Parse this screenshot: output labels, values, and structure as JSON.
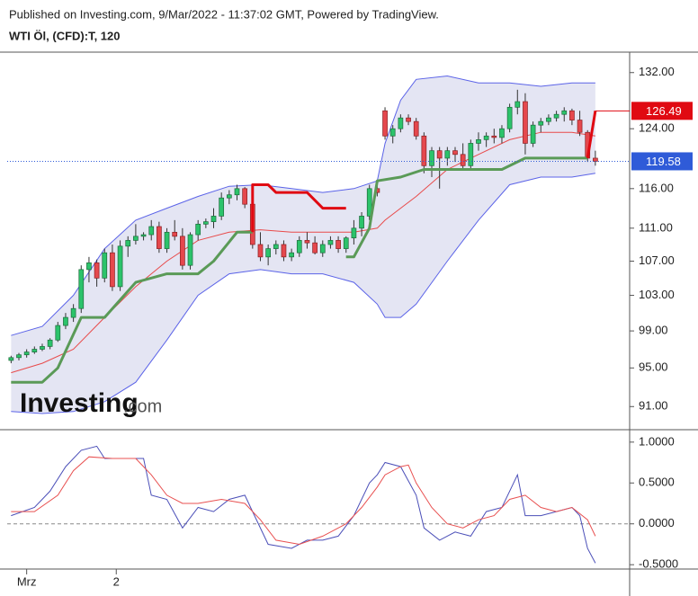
{
  "header": "Published on Investing.com, 9/Mar/2022 - 11:37:02 GMT, Powered by TradingView.",
  "logo": {
    "name": "Investing",
    "suffix": ".com"
  },
  "chart_data": [
    {
      "type": "candlestick",
      "title": "WTI Öl, (CFD):T, 120",
      "log_scale": true,
      "xlim": [
        -0.5,
        79.4
      ],
      "ylim": [
        89.4,
        134.5
      ],
      "yticks": [
        {
          "value": 91,
          "label": "91.00"
        },
        {
          "value": 95,
          "label": "95.00"
        },
        {
          "value": 99,
          "label": "99.00"
        },
        {
          "value": 103,
          "label": "103.00"
        },
        {
          "value": 107,
          "label": "107.00"
        },
        {
          "value": 111,
          "label": "111.00"
        },
        {
          "value": 116,
          "label": "116.00"
        },
        {
          "value": 124,
          "label": "124.00"
        },
        {
          "value": 132,
          "label": "132.00"
        }
      ],
      "up_color": "#2cc36b",
      "down_color": "#e5484d",
      "open": [
        95.8,
        96.1,
        96.4,
        96.7,
        97.0,
        97.3,
        98.0,
        99.6,
        100.5,
        101.5,
        106.0,
        106.8,
        105.0,
        108.0,
        104.0,
        108.8,
        109.5,
        110.0,
        110.2,
        111.2,
        108.5,
        110.5,
        110.0,
        106.5,
        110.2,
        111.5,
        111.8,
        112.5,
        114.8,
        115.2,
        116.0,
        114.0,
        109.0,
        107.5,
        108.5,
        109.0,
        107.5,
        108.0,
        109.5,
        109.2,
        108.0,
        109.0,
        109.5,
        108.5,
        109.8,
        111.0,
        112.5,
        116.0,
        126.5,
        123.0,
        124.0,
        125.5,
        125.0,
        123.0,
        119.0,
        121.0,
        120.0,
        121.0,
        120.5,
        119.0,
        122.0,
        122.5,
        123.0,
        122.8,
        124.0,
        127.0,
        127.8,
        122.0,
        124.5,
        125.0,
        125.5,
        126.0,
        126.5,
        125.2,
        123.5,
        120.0
      ],
      "high": [
        96.3,
        96.6,
        97.0,
        97.3,
        97.6,
        98.2,
        100.0,
        101.0,
        102.0,
        106.5,
        107.5,
        107.2,
        108.5,
        109.0,
        109.5,
        110.0,
        111.5,
        110.5,
        112.0,
        111.8,
        111.0,
        112.0,
        111.0,
        110.5,
        112.0,
        112.2,
        113.5,
        115.5,
        115.8,
        116.5,
        116.2,
        114.5,
        110.5,
        109.0,
        109.5,
        109.5,
        108.5,
        110.0,
        110.5,
        110.0,
        109.5,
        110.0,
        110.0,
        110.0,
        112.0,
        113.0,
        116.5,
        116.3,
        127.0,
        124.5,
        126.0,
        126.0,
        125.5,
        123.5,
        121.5,
        121.5,
        121.5,
        121.5,
        122.0,
        122.5,
        123.5,
        123.5,
        124.0,
        124.5,
        127.5,
        129.5,
        129.0,
        125.0,
        125.5,
        126.0,
        126.5,
        127.0,
        126.8,
        126.5,
        123.8,
        121.0
      ],
      "low": [
        95.5,
        95.8,
        96.1,
        96.5,
        96.8,
        97.0,
        97.8,
        99.2,
        100.0,
        101.0,
        104.5,
        104.0,
        104.5,
        103.5,
        103.5,
        107.5,
        109.0,
        109.5,
        109.5,
        108.0,
        108.0,
        109.5,
        106.0,
        106.0,
        109.5,
        111.0,
        111.0,
        112.0,
        114.0,
        114.5,
        113.5,
        108.5,
        107.0,
        106.5,
        107.8,
        107.0,
        107.0,
        107.5,
        108.5,
        107.8,
        107.5,
        108.5,
        108.0,
        108.0,
        109.0,
        110.0,
        112.0,
        115.0,
        122.5,
        122.0,
        123.5,
        124.5,
        122.5,
        118.0,
        117.5,
        116.0,
        119.0,
        119.5,
        118.5,
        118.5,
        121.0,
        121.5,
        122.0,
        122.0,
        123.5,
        126.0,
        120.5,
        121.5,
        123.5,
        124.5,
        125.0,
        125.0,
        124.5,
        123.0,
        119.5,
        119.0
      ],
      "close": [
        96.1,
        96.4,
        96.7,
        97.0,
        97.3,
        98.0,
        99.6,
        100.5,
        101.5,
        106.0,
        106.8,
        105.0,
        108.0,
        104.0,
        108.8,
        109.5,
        110.0,
        110.2,
        111.2,
        108.5,
        110.5,
        110.0,
        106.5,
        110.2,
        111.5,
        111.8,
        112.5,
        114.8,
        115.2,
        116.0,
        114.0,
        109.0,
        107.5,
        108.5,
        109.0,
        107.5,
        108.0,
        109.5,
        109.2,
        108.0,
        109.0,
        109.5,
        108.5,
        109.8,
        111.0,
        112.5,
        116.0,
        115.5,
        123.0,
        124.0,
        125.5,
        125.0,
        123.0,
        119.0,
        121.0,
        120.0,
        121.0,
        120.5,
        119.0,
        122.0,
        122.5,
        123.0,
        122.8,
        124.0,
        127.0,
        127.8,
        122.0,
        124.5,
        125.0,
        125.5,
        126.0,
        126.5,
        125.2,
        123.5,
        120.0,
        119.58
      ],
      "last_color": "#2f5bd8",
      "band": {
        "color": "#5b63e8",
        "fill": "#e4e5f3",
        "x": [
          0,
          4,
          8,
          12,
          16,
          20,
          24,
          28,
          32,
          36,
          40,
          44,
          47,
          48,
          50,
          52,
          56,
          60,
          64,
          68,
          72,
          75
        ],
        "upper": [
          98.5,
          99.5,
          103,
          108.5,
          112,
          113.5,
          115,
          116.3,
          116.5,
          116,
          115.5,
          116,
          117,
          122,
          128,
          131,
          131.5,
          130.5,
          130.5,
          130,
          130.5,
          130.5
        ],
        "lower": [
          90.5,
          90.3,
          90.5,
          91.5,
          93.5,
          98,
          103,
          105.5,
          106,
          105.5,
          105.5,
          104.5,
          102,
          100.5,
          100.5,
          102,
          107,
          112,
          116.5,
          117.5,
          117.5,
          118
        ],
        "middle": [
          94.5,
          95.5,
          97,
          100.5,
          104,
          107,
          109.5,
          110.5,
          110.8,
          110.5,
          110.5,
          110.5,
          111,
          112,
          113.5,
          115,
          118.5,
          120.5,
          122.5,
          123.5,
          123.5,
          123
        ],
        "middle_color": "#e84a4a"
      },
      "series": [
        {
          "color": "#5a9a57",
          "x": [
            0,
            4,
            6,
            9,
            12,
            16,
            18,
            20,
            24,
            26,
            29,
            31,
            37,
            43,
            44,
            46,
            47,
            50,
            53,
            63,
            66,
            74
          ],
          "values": [
            93.5,
            93.5,
            95,
            100.5,
            100.5,
            104.5,
            105,
            105.5,
            105.5,
            107,
            110.5,
            110.5,
            null,
            107.5,
            107.5,
            111,
            117,
            117.5,
            118.5,
            118.5,
            120,
            120
          ]
        },
        {
          "color": "#e00a12",
          "x": [
            31,
            31,
            33,
            34,
            38,
            40,
            43,
            58,
            74,
            75
          ],
          "values": [
            110.5,
            116.5,
            116.5,
            115.5,
            115.5,
            113.5,
            113.5,
            null,
            120,
            126.49
          ]
        }
      ]
    },
    {
      "type": "line",
      "xlim": [
        -0.5,
        79.4
      ],
      "ylim": [
        -0.63,
        1.13
      ],
      "yticks": [
        {
          "value": -0.5,
          "label": "-0.5000"
        },
        {
          "value": 0,
          "label": "0.0000"
        },
        {
          "value": 0.5,
          "label": "0.5000"
        },
        {
          "value": 1,
          "label": "1.0000"
        }
      ],
      "xticks": [
        {
          "value": 2,
          "label": "Mrz"
        },
        {
          "value": 13.5,
          "label": "2"
        }
      ],
      "zero_line": 0,
      "series": [
        {
          "color": "#4b4fb8",
          "x": [
            0,
            3,
            5,
            7,
            9,
            11,
            12,
            14,
            17,
            18,
            20,
            22,
            24,
            26,
            28,
            30,
            31,
            33,
            36,
            38,
            40,
            42,
            44,
            46,
            47,
            48,
            50,
            52,
            53,
            55,
            57,
            59,
            61,
            63,
            65,
            66,
            68,
            70,
            72,
            73,
            74,
            75
          ],
          "values": [
            0.1,
            0.2,
            0.4,
            0.7,
            0.9,
            0.95,
            0.8,
            0.8,
            0.8,
            0.35,
            0.3,
            -0.05,
            0.2,
            0.15,
            0.3,
            0.35,
            0.15,
            -0.25,
            -0.3,
            -0.2,
            -0.2,
            -0.15,
            0.1,
            0.5,
            0.6,
            0.75,
            0.7,
            0.35,
            -0.05,
            -0.2,
            -0.1,
            -0.15,
            0.15,
            0.2,
            0.6,
            0.1,
            0.1,
            0.15,
            0.2,
            0.1,
            -0.3,
            -0.48
          ]
        },
        {
          "color": "#e85050",
          "x": [
            0,
            3,
            6,
            8,
            10,
            13,
            16,
            18,
            20,
            22,
            24,
            27,
            30,
            32,
            34,
            37,
            40,
            43,
            45,
            47,
            48,
            50,
            51,
            52,
            54,
            56,
            58,
            60,
            62,
            64,
            66,
            68,
            70,
            72,
            74,
            75
          ],
          "values": [
            0.15,
            0.15,
            0.35,
            0.65,
            0.82,
            0.8,
            0.8,
            0.6,
            0.35,
            0.25,
            0.25,
            0.3,
            0.25,
            0.05,
            -0.2,
            -0.25,
            -0.15,
            0,
            0.2,
            0.45,
            0.6,
            0.7,
            0.72,
            0.5,
            0.2,
            0,
            -0.05,
            0.05,
            0.1,
            0.3,
            0.35,
            0.2,
            0.15,
            0.2,
            0.05,
            -0.15
          ]
        }
      ]
    }
  ]
}
